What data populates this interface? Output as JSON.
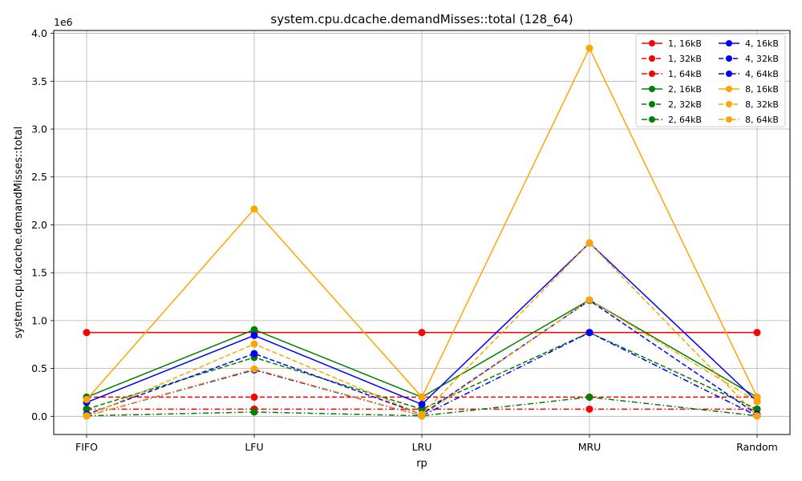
{
  "chart_data": {
    "type": "line",
    "title": "system.cpu.dcache.demandMisses::total (128_64)",
    "xlabel": "rp",
    "ylabel": "system.cpu.dcache.demandMisses::total",
    "y_offset_text": "1e6",
    "categories": [
      "FIFO",
      "LFU",
      "LRU",
      "MRU",
      "Random"
    ],
    "ylim": [
      -0.19,
      4.03
    ],
    "yticks": [
      0.0,
      0.5,
      1.0,
      1.5,
      2.0,
      2.5,
      3.0,
      3.5,
      4.0
    ],
    "ytick_labels": [
      "0.0",
      "0.5",
      "1.0",
      "1.5",
      "2.0",
      "2.5",
      "3.0",
      "3.5",
      "4.0"
    ],
    "y_unit_multiplier": 1000000,
    "grid": true,
    "legend_position": "top-right",
    "legend_columns": 2,
    "series": [
      {
        "name": "1, 16kB",
        "color": "#ff0000",
        "dash": "solid",
        "values": [
          0.875,
          0.875,
          0.875,
          0.875,
          0.875
        ]
      },
      {
        "name": "1, 32kB",
        "color": "#ff0000",
        "dash": "dashed",
        "values": [
          0.2,
          0.2,
          0.2,
          0.2,
          0.2
        ]
      },
      {
        "name": "1, 64kB",
        "color": "#ff0000",
        "dash": "dashdot",
        "values": [
          0.075,
          0.075,
          0.075,
          0.075,
          0.075
        ]
      },
      {
        "name": "2, 16kB",
        "color": "#008000",
        "dash": "solid",
        "values": [
          0.2,
          0.905,
          0.2,
          1.215,
          0.2
        ]
      },
      {
        "name": "2, 32kB",
        "color": "#008000",
        "dash": "dashed",
        "values": [
          0.075,
          0.615,
          0.075,
          0.875,
          0.075
        ]
      },
      {
        "name": "2, 64kB",
        "color": "#008000",
        "dash": "dashdot",
        "values": [
          0.005,
          0.045,
          0.005,
          0.2,
          0.005
        ]
      },
      {
        "name": "4, 16kB",
        "color": "#0000ff",
        "dash": "solid",
        "values": [
          0.145,
          0.845,
          0.125,
          1.81,
          0.155
        ]
      },
      {
        "name": "4, 32kB",
        "color": "#0000ff",
        "dash": "dashed",
        "values": [
          0.02,
          0.655,
          0.02,
          1.21,
          0.02
        ]
      },
      {
        "name": "4, 64kB",
        "color": "#0000ff",
        "dash": "dashdot",
        "values": [
          0.005,
          0.485,
          0.005,
          0.875,
          0.005
        ]
      },
      {
        "name": "8, 16kB",
        "color": "#ffa500",
        "dash": "solid",
        "values": [
          0.175,
          2.165,
          0.2,
          3.845,
          0.2
        ]
      },
      {
        "name": "8, 32kB",
        "color": "#ffa500",
        "dash": "dashed",
        "values": [
          0.005,
          0.755,
          0.02,
          1.81,
          0.005
        ]
      },
      {
        "name": "8, 64kB",
        "color": "#ffa500",
        "dash": "dashdot",
        "values": [
          0.005,
          0.495,
          0.005,
          1.215,
          0.155
        ]
      }
    ]
  }
}
